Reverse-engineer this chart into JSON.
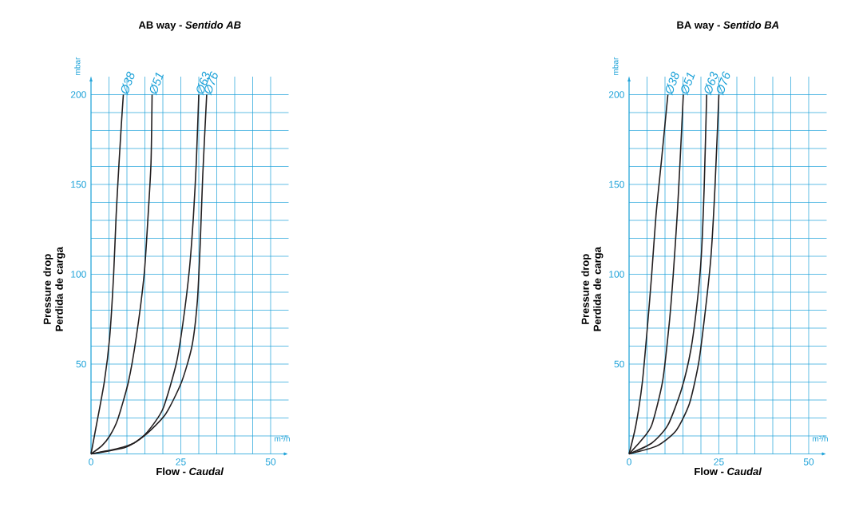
{
  "chart_data": [
    {
      "type": "line",
      "title": "AB way - *Sentido AB*",
      "xlabel": "Flow - *Caudal*",
      "ylabel": "Pressure drop Perdida de carga",
      "annotations": [
        "mbar",
        "m³/h"
      ],
      "series": [
        {
          "name": "Ø38",
          "color": "#231f20",
          "x": [
            0,
            1.5,
            3.7,
            5.2,
            6.3,
            7.0,
            7.8,
            8.5,
            9.0
          ],
          "values": [
            0,
            16,
            40,
            65,
            100,
            133,
            162,
            185,
            200
          ]
        },
        {
          "name": "Ø51",
          "color": "#231f20",
          "x": [
            0,
            3,
            5.2,
            7.4,
            10.4,
            12.6,
            14.8,
            15.9,
            16.7,
            17.0
          ],
          "values": [
            0,
            4.5,
            10,
            19,
            40,
            65,
            100,
            133,
            162,
            200
          ]
        },
        {
          "name": "Ø63",
          "color": "#231f20",
          "x": [
            0,
            7.4,
            11.9,
            15.6,
            20,
            23.7,
            25.6,
            27.4,
            28.5,
            29.3,
            30
          ],
          "values": [
            0,
            3,
            6,
            12,
            25,
            50,
            73,
            103,
            132,
            162,
            200
          ]
        },
        {
          "name": "Ø76",
          "color": "#231f20",
          "x": [
            0,
            9.6,
            14.8,
            20.7,
            25.2,
            28.1,
            29.6,
            30.4,
            31.1,
            32.2
          ],
          "values": [
            0,
            3.7,
            10,
            22,
            40,
            60,
            85,
            117,
            155,
            200
          ]
        }
      ],
      "xlim": [
        0,
        55
      ],
      "ylim": [
        0,
        210
      ],
      "xticks": [
        0,
        {
          "value": 5,
          "label": null
        },
        {
          "value": 10,
          "label": null
        },
        {
          "value": 15,
          "label": null
        },
        {
          "value": 20,
          "label": null
        },
        25,
        {
          "value": 30,
          "label": null
        },
        {
          "value": 35,
          "label": null
        },
        {
          "value": 40,
          "label": null
        },
        {
          "value": 45,
          "label": null
        },
        50
      ],
      "yticks": [
        {
          "value": 10,
          "label": null
        },
        {
          "value": 20,
          "label": null
        },
        {
          "value": 30,
          "label": null
        },
        {
          "value": 40,
          "label": null
        },
        50,
        {
          "value": 60,
          "label": null
        },
        {
          "value": 70,
          "label": null
        },
        {
          "value": 80,
          "label": null
        },
        {
          "value": 90,
          "label": null
        },
        100,
        {
          "value": 110,
          "label": null
        },
        {
          "value": 120,
          "label": null
        },
        {
          "value": 130,
          "label": null
        },
        {
          "value": 140,
          "label": null
        },
        150,
        {
          "value": 160,
          "label": null
        },
        {
          "value": 170,
          "label": null
        },
        {
          "value": 180,
          "label": null
        },
        {
          "value": 190,
          "label": null
        },
        200
      ],
      "grid": true
    },
    {
      "type": "line",
      "title": "BA way - *Sentido BA*",
      "xlabel": "Flow - *Caudal*",
      "ylabel": "Pressure drop Perdida de carga",
      "annotations": [
        "mbar",
        "m³/h"
      ],
      "series": [
        {
          "name": "Ø38",
          "color": "#231f20",
          "x": [
            0,
            1.9,
            3.7,
            5.2,
            6.3,
            7.5,
            9.0,
            10.8
          ],
          "values": [
            0,
            16,
            40,
            73,
            100,
            133,
            163,
            200
          ]
        },
        {
          "name": "Ø51",
          "color": "#231f20",
          "x": [
            0,
            3.4,
            6.3,
            9.3,
            11.2,
            12.3,
            13.4,
            14.2,
            15.1
          ],
          "values": [
            0,
            7.5,
            16,
            40,
            73,
            100,
            133,
            163,
            200
          ]
        },
        {
          "name": "Ø63",
          "color": "#231f20",
          "x": [
            0,
            6.3,
            10.8,
            14.6,
            17.2,
            19.0,
            20.1,
            20.9,
            21.6
          ],
          "values": [
            0,
            6,
            16,
            36,
            58,
            85,
            110,
            148,
            200
          ]
        },
        {
          "name": "Ø76",
          "color": "#231f20",
          "x": [
            0,
            7.8,
            13.1,
            16.8,
            19.4,
            21.3,
            22.8,
            23.9,
            25
          ],
          "values": [
            0,
            4.5,
            13,
            28,
            51,
            81,
            110,
            148,
            200
          ]
        }
      ],
      "xlim": [
        0,
        55
      ],
      "ylim": [
        0,
        210
      ],
      "xticks": [
        0,
        {
          "value": 5,
          "label": null
        },
        {
          "value": 10,
          "label": null
        },
        {
          "value": 15,
          "label": null
        },
        {
          "value": 20,
          "label": null
        },
        25,
        {
          "value": 30,
          "label": null
        },
        {
          "value": 35,
          "label": null
        },
        {
          "value": 40,
          "label": null
        },
        {
          "value": 45,
          "label": null
        },
        50
      ],
      "yticks": [
        {
          "value": 10,
          "label": null
        },
        {
          "value": 20,
          "label": null
        },
        {
          "value": 30,
          "label": null
        },
        {
          "value": 40,
          "label": null
        },
        50,
        {
          "value": 60,
          "label": null
        },
        {
          "value": 70,
          "label": null
        },
        {
          "value": 80,
          "label": null
        },
        {
          "value": 90,
          "label": null
        },
        100,
        {
          "value": 110,
          "label": null
        },
        {
          "value": 120,
          "label": null
        },
        {
          "value": 130,
          "label": null
        },
        {
          "value": 140,
          "label": null
        },
        150,
        {
          "value": 160,
          "label": null
        },
        {
          "value": 170,
          "label": null
        },
        {
          "value": 180,
          "label": null
        },
        {
          "value": 190,
          "label": null
        },
        200
      ],
      "grid": true
    }
  ]
}
